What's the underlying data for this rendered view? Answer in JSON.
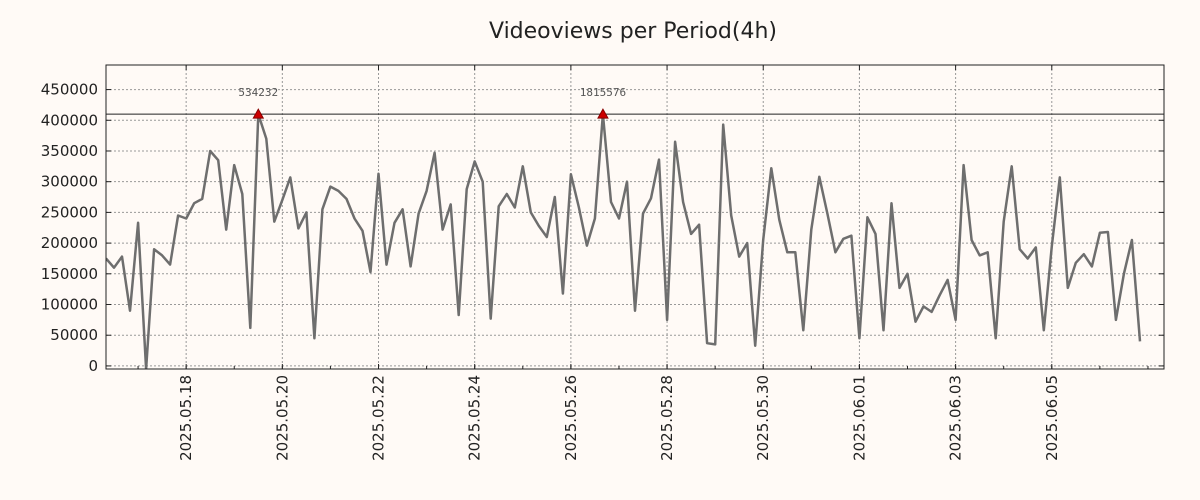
{
  "chart_data": {
    "type": "line",
    "title": "Videoviews per Period(4h)",
    "xlabel": "",
    "ylabel": "",
    "x_start": "2025-05-16 08:00",
    "x_end": "2025-06-07 08:00",
    "x_interval_hours": 4,
    "ylim": [
      -5000,
      490000
    ],
    "yticks": [
      0,
      50000,
      100000,
      150000,
      200000,
      250000,
      300000,
      350000,
      400000,
      450000
    ],
    "xticks": [
      "2025.05.18",
      "2025.05.20",
      "2025.05.22",
      "2025.05.24",
      "2025.05.26",
      "2025.05.28",
      "2025.05.30",
      "2025.06.01",
      "2025.06.03",
      "2025.06.05"
    ],
    "grid": true,
    "threshold": 410000,
    "series": [
      {
        "name": "Videoviews",
        "color": "#6e6e6e",
        "values": [
          175000,
          160000,
          178000,
          90000,
          233000,
          -5000,
          190000,
          180000,
          165000,
          245000,
          240000,
          265000,
          272000,
          350000,
          335000,
          222000,
          327000,
          280000,
          62000,
          410000,
          370000,
          235000,
          270000,
          307000,
          224000,
          250000,
          45000,
          255000,
          292000,
          285000,
          272000,
          240000,
          220000,
          153000,
          313000,
          165000,
          233000,
          255000,
          162000,
          248000,
          285000,
          347000,
          222000,
          263000,
          83000,
          288000,
          333000,
          300000,
          77000,
          260000,
          280000,
          258000,
          325000,
          250000,
          228000,
          210000,
          275000,
          118000,
          312000,
          258000,
          196000,
          240000,
          410000,
          267000,
          240000,
          300000,
          90000,
          248000,
          273000,
          336000,
          75000,
          365000,
          267000,
          215000,
          230000,
          37000,
          35000,
          393000,
          245000,
          178000,
          200000,
          33000,
          205000,
          322000,
          238000,
          185000,
          185000,
          58000,
          222000,
          308000,
          248000,
          185000,
          207000,
          212000,
          45000,
          242000,
          215000,
          58000,
          265000,
          127000,
          150000,
          72000,
          97000,
          88000,
          115000,
          140000,
          75000,
          327000,
          205000,
          180000,
          185000,
          45000,
          235000,
          325000,
          190000,
          175000,
          193000,
          58000,
          195000,
          307000,
          127000,
          168000,
          182000,
          162000,
          217000,
          218000,
          75000,
          150000,
          205000,
          40000
        ]
      }
    ],
    "annotations": [
      {
        "label": "534232",
        "index": 19,
        "y": 410000,
        "marker": "triangle",
        "color": "#cc0000"
      },
      {
        "label": "1815576",
        "index": 62,
        "y": 410000,
        "marker": "triangle",
        "color": "#cc0000"
      }
    ]
  }
}
